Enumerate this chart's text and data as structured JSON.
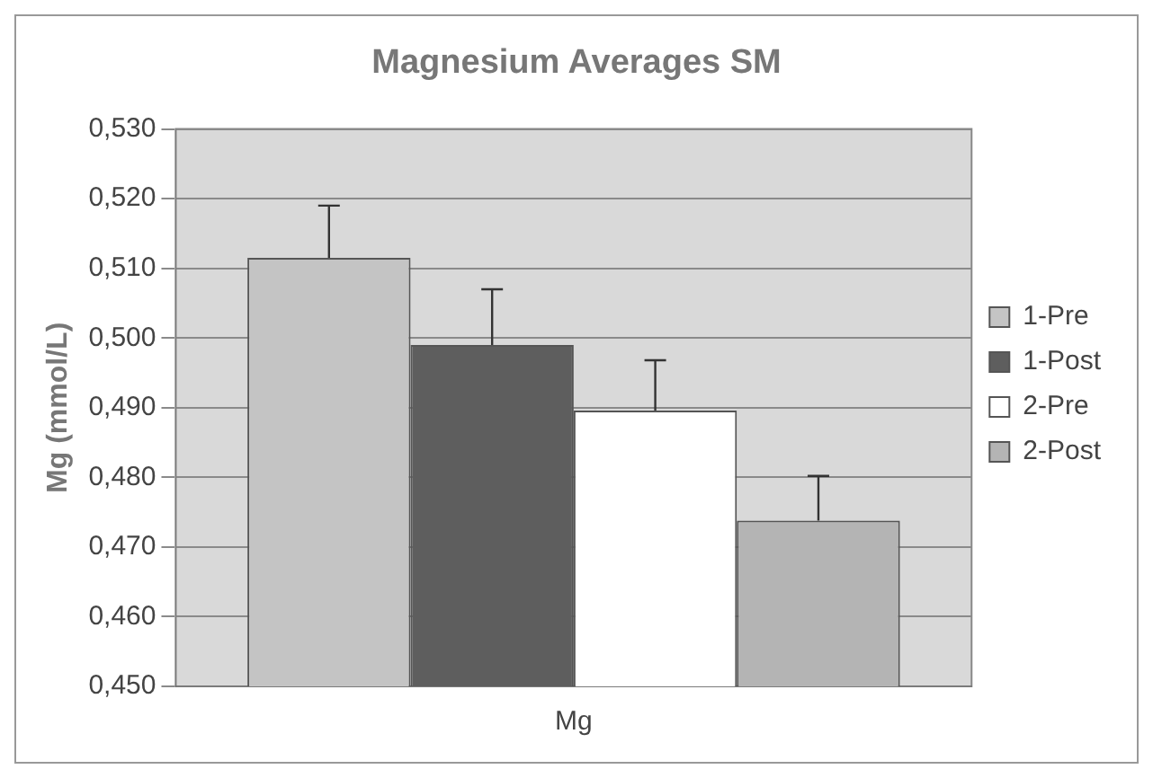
{
  "chart_data": {
    "type": "bar",
    "title": "Magnesium Averages SM",
    "ylabel": "Mg (mmol/L)",
    "categories": [
      "Mg"
    ],
    "series": [
      {
        "name": "1-Pre",
        "color": "#c4c4c4",
        "values": [
          0.5115
        ],
        "errors": [
          [
            0.5115,
            0.519
          ]
        ]
      },
      {
        "name": "1-Post",
        "color": "#5e5e5e",
        "values": [
          0.499
        ],
        "errors": [
          [
            0.499,
            0.507
          ]
        ]
      },
      {
        "name": "2-Pre",
        "color": "#ffffff",
        "values": [
          0.4896
        ],
        "errors": [
          [
            0.4896,
            0.4968
          ]
        ]
      },
      {
        "name": "2-Post",
        "color": "#b4b4b4",
        "values": [
          0.4738
        ],
        "errors": [
          [
            0.4738,
            0.4802
          ]
        ]
      }
    ],
    "ylim": [
      0.45,
      0.53
    ],
    "yticks": [
      {
        "value": 0.45,
        "label": "0,450"
      },
      {
        "value": 0.46,
        "label": "0,460"
      },
      {
        "value": 0.47,
        "label": "0,470"
      },
      {
        "value": 0.48,
        "label": "0,480"
      },
      {
        "value": 0.49,
        "label": "0,490"
      },
      {
        "value": 0.5,
        "label": "0,500"
      },
      {
        "value": 0.51,
        "label": "0,510"
      },
      {
        "value": 0.52,
        "label": "0,520"
      },
      {
        "value": 0.53,
        "label": "0,530"
      }
    ],
    "grid": "y",
    "legend": "right"
  }
}
